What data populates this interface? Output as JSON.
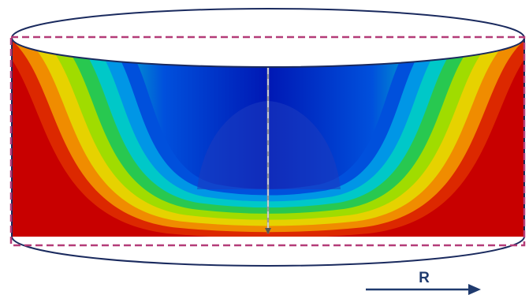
{
  "figure": {
    "axis_label": "R",
    "colors": {
      "outline": "#1a2a5e",
      "dashed_frame": "#b43c78",
      "axis_arrow": "#1f3a6e",
      "axis_label": "#1f3a6e",
      "centerline": "#c8c8c8"
    },
    "contour_colormap": [
      "#0018b4",
      "#0050dc",
      "#0096e6",
      "#00c8c8",
      "#28c850",
      "#a0dc00",
      "#e6d200",
      "#f08c00",
      "#dc2800",
      "#c80000"
    ]
  }
}
